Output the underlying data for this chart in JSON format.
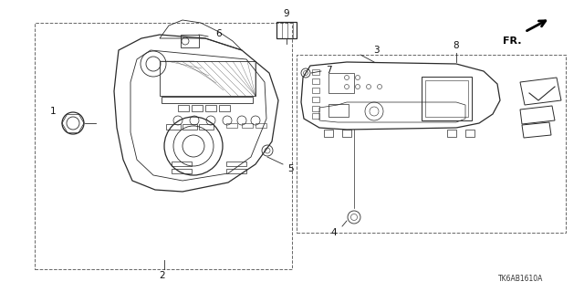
{
  "bg_color": "#ffffff",
  "lc": "#2a2a2a",
  "fig_width": 6.4,
  "fig_height": 3.2,
  "dpi": 100,
  "title_code": "TK6AB1610A",
  "fr_label": "FR."
}
